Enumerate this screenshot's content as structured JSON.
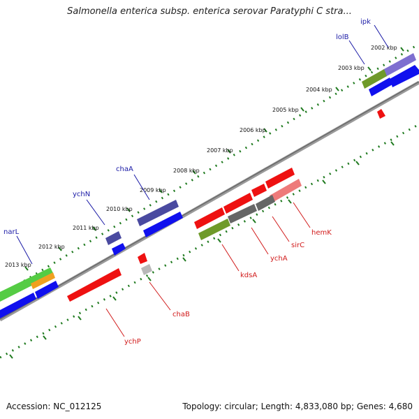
{
  "title": "Salmonella enterica subsp. enterica serovar Paratyphi C stra...",
  "footer": {
    "accession": "Accession: NC_012125",
    "summary": "Topology: circular; Length: 4,833,080 bp; Genes: 4,680"
  },
  "ticks": [
    {
      "label": "2002 kbp",
      "pos_kbp": 2002
    },
    {
      "label": "2003 kbp",
      "pos_kbp": 2003
    },
    {
      "label": "2004 kbp",
      "pos_kbp": 2004
    },
    {
      "label": "2005 kbp",
      "pos_kbp": 2005
    },
    {
      "label": "2006 kbp",
      "pos_kbp": 2006
    },
    {
      "label": "2007 kbp",
      "pos_kbp": 2007
    },
    {
      "label": "2008 kbp",
      "pos_kbp": 2008
    },
    {
      "label": "2009 kbp",
      "pos_kbp": 2009
    },
    {
      "label": "2010 kbp",
      "pos_kbp": 2010
    },
    {
      "label": "2011 kbp",
      "pos_kbp": 2011
    },
    {
      "label": "2012 kbp",
      "pos_kbp": 2012
    },
    {
      "label": "2013 kbp",
      "pos_kbp": 2013
    }
  ],
  "forward_genes": [
    {
      "label": "ipk"
    },
    {
      "label": "lolB"
    },
    {
      "label": "chaA"
    },
    {
      "label": "ychN"
    },
    {
      "label": "narL"
    }
  ],
  "reverse_genes": [
    {
      "label": "hemK"
    },
    {
      "label": "sirC"
    },
    {
      "label": "ychA"
    },
    {
      "label": "kdsA"
    },
    {
      "label": "chaB"
    },
    {
      "label": "ychP"
    }
  ],
  "colors": {
    "forward_label": "#1a1aa6",
    "reverse_label": "#d11a1a",
    "tick": "#1f7a1f",
    "backbone": "#808080",
    "cds_blue": "#1010ee",
    "cds_red": "#ee1111",
    "cds_purple": "#4a4aa0",
    "cds_lavender": "#7e6fd0",
    "cds_olive": "#6f9a2a",
    "cds_gray": "#666666",
    "cds_pink": "#ee7a7a",
    "cds_lightgreen": "#55cc44",
    "cds_orange": "#f0a020"
  }
}
